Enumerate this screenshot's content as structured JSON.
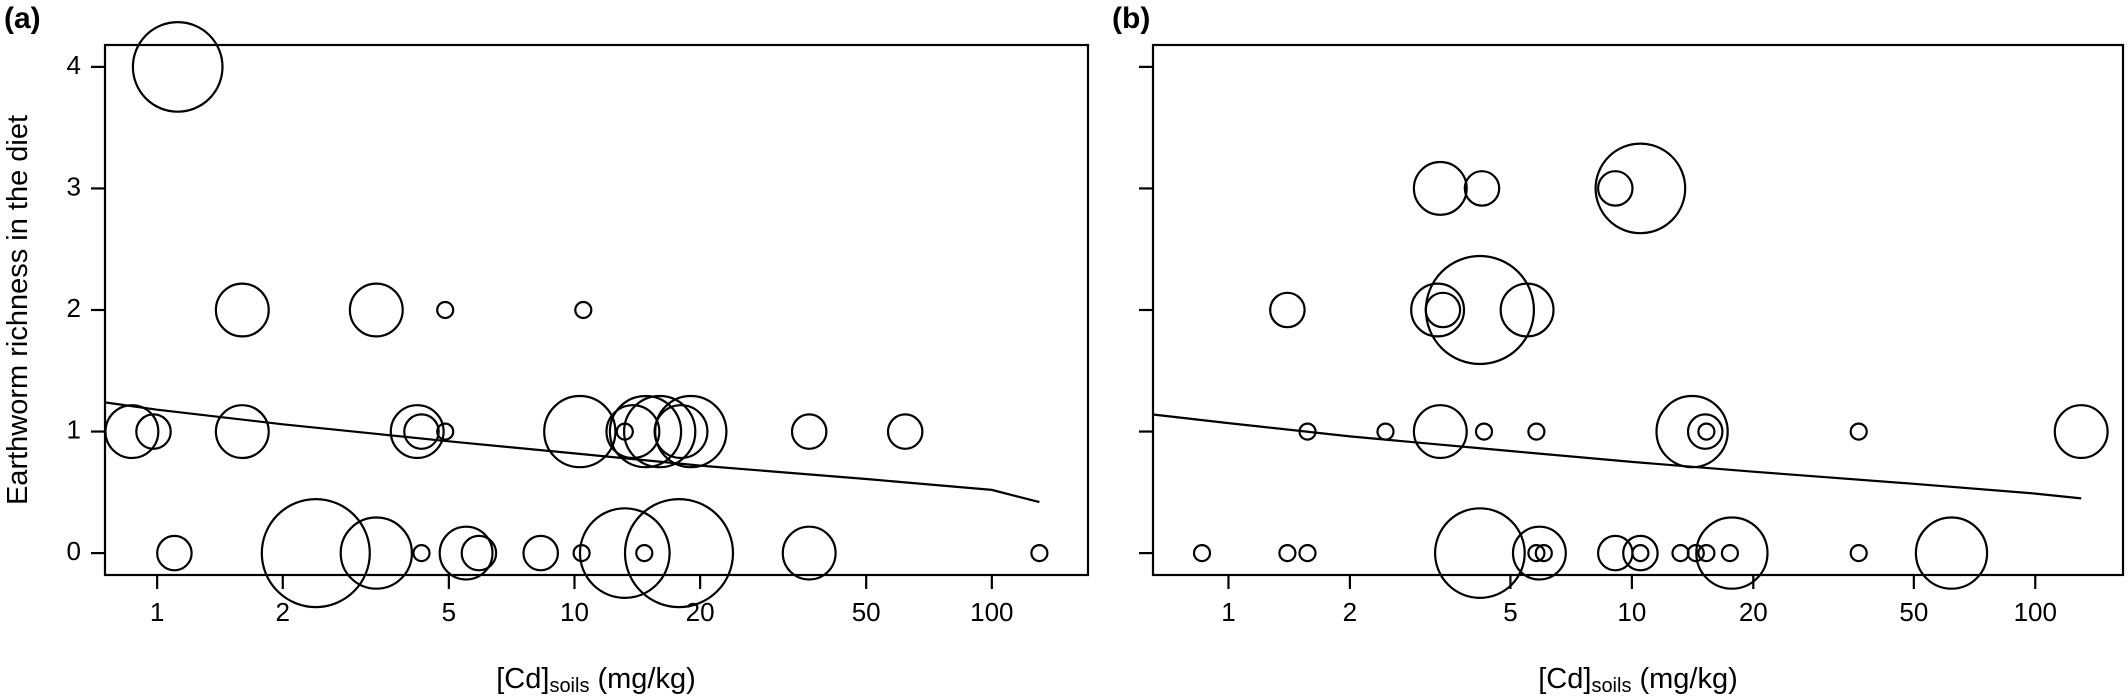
{
  "chart_data": [
    {
      "type": "scatter",
      "panel_label": "(a)",
      "xlabel_main": "[Cd]",
      "xlabel_sub": "soils",
      "xlabel_unit": "(mg/kg)",
      "ylabel": "Earthworm richness in the diet",
      "x_scale": "log",
      "xlim": [
        0.75,
        170
      ],
      "ylim": [
        -0.18,
        4.18
      ],
      "x_ticks": [
        1,
        2,
        5,
        10,
        20,
        50,
        100
      ],
      "x_tick_labels": [
        "1",
        "2",
        "5",
        "10",
        "20",
        "50",
        "100"
      ],
      "y_ticks": [
        0,
        1,
        2,
        3,
        4
      ],
      "y_tick_labels": [
        "0",
        "1",
        "2",
        "3",
        "4"
      ],
      "points": [
        {
          "x": 1.12,
          "y": 4,
          "size": 5
        },
        {
          "x": 1.6,
          "y": 2,
          "size": 3
        },
        {
          "x": 3.35,
          "y": 2,
          "size": 3
        },
        {
          "x": 4.9,
          "y": 2,
          "size": 1
        },
        {
          "x": 10.5,
          "y": 2,
          "size": 1
        },
        {
          "x": 0.87,
          "y": 1,
          "size": 3
        },
        {
          "x": 0.98,
          "y": 1,
          "size": 2
        },
        {
          "x": 1.6,
          "y": 1,
          "size": 3
        },
        {
          "x": 4.2,
          "y": 1,
          "size": 3
        },
        {
          "x": 4.3,
          "y": 1,
          "size": 2
        },
        {
          "x": 4.9,
          "y": 1,
          "size": 1
        },
        {
          "x": 10.3,
          "y": 1,
          "size": 4
        },
        {
          "x": 13.2,
          "y": 1,
          "size": 1
        },
        {
          "x": 13.8,
          "y": 1,
          "size": 3
        },
        {
          "x": 14.8,
          "y": 1,
          "size": 4
        },
        {
          "x": 16.0,
          "y": 1,
          "size": 4
        },
        {
          "x": 18.0,
          "y": 1,
          "size": 3
        },
        {
          "x": 19.0,
          "y": 1,
          "size": 4
        },
        {
          "x": 36.5,
          "y": 1,
          "size": 2
        },
        {
          "x": 62.0,
          "y": 1,
          "size": 2
        },
        {
          "x": 1.1,
          "y": 0,
          "size": 2
        },
        {
          "x": 2.4,
          "y": 0,
          "size": 6
        },
        {
          "x": 3.35,
          "y": 0,
          "size": 4
        },
        {
          "x": 4.3,
          "y": 0,
          "size": 1
        },
        {
          "x": 5.5,
          "y": 0,
          "size": 3
        },
        {
          "x": 5.9,
          "y": 0,
          "size": 2
        },
        {
          "x": 8.3,
          "y": 0,
          "size": 2
        },
        {
          "x": 10.4,
          "y": 0,
          "size": 1
        },
        {
          "x": 13.2,
          "y": 0,
          "size": 5
        },
        {
          "x": 14.7,
          "y": 0,
          "size": 1
        },
        {
          "x": 17.8,
          "y": 0,
          "size": 6
        },
        {
          "x": 36.5,
          "y": 0,
          "size": 3
        },
        {
          "x": 130.0,
          "y": 0,
          "size": 1
        }
      ],
      "fit_line": {
        "x": [
          0.75,
          1,
          2,
          5,
          10,
          20,
          50,
          100,
          130
        ],
        "y": [
          1.24,
          1.18,
          1.06,
          0.92,
          0.82,
          0.72,
          0.61,
          0.52,
          0.42
        ]
      }
    },
    {
      "type": "scatter",
      "panel_label": "(b)",
      "xlabel_main": "[Cd]",
      "xlabel_sub": "soils",
      "xlabel_unit": "(mg/kg)",
      "x_scale": "log",
      "xlim": [
        0.65,
        165
      ],
      "ylim": [
        -0.18,
        4.18
      ],
      "x_ticks": [
        1,
        2,
        5,
        10,
        20,
        50,
        100
      ],
      "x_tick_labels": [
        "1",
        "2",
        "5",
        "10",
        "20",
        "50",
        "100"
      ],
      "y_ticks": [
        0,
        1,
        2,
        3,
        4
      ],
      "points": [
        {
          "x": 3.35,
          "y": 3,
          "size": 3
        },
        {
          "x": 4.25,
          "y": 3,
          "size": 2
        },
        {
          "x": 9.1,
          "y": 3,
          "size": 2
        },
        {
          "x": 10.5,
          "y": 3,
          "size": 5
        },
        {
          "x": 1.4,
          "y": 2,
          "size": 2
        },
        {
          "x": 3.3,
          "y": 2,
          "size": 3
        },
        {
          "x": 3.4,
          "y": 2,
          "size": 2
        },
        {
          "x": 4.2,
          "y": 2,
          "size": 6
        },
        {
          "x": 5.5,
          "y": 2,
          "size": 3
        },
        {
          "x": 1.57,
          "y": 1,
          "size": 1
        },
        {
          "x": 2.45,
          "y": 1,
          "size": 1
        },
        {
          "x": 3.35,
          "y": 1,
          "size": 3
        },
        {
          "x": 4.3,
          "y": 1,
          "size": 1
        },
        {
          "x": 5.8,
          "y": 1,
          "size": 1
        },
        {
          "x": 14.1,
          "y": 1,
          "size": 4
        },
        {
          "x": 15.2,
          "y": 1,
          "size": 2
        },
        {
          "x": 15.3,
          "y": 1,
          "size": 1
        },
        {
          "x": 36.5,
          "y": 1,
          "size": 1
        },
        {
          "x": 130.0,
          "y": 1,
          "size": 3
        },
        {
          "x": 0.86,
          "y": 0,
          "size": 1
        },
        {
          "x": 1.4,
          "y": 0,
          "size": 1
        },
        {
          "x": 1.57,
          "y": 0,
          "size": 1
        },
        {
          "x": 4.2,
          "y": 0,
          "size": 5
        },
        {
          "x": 5.9,
          "y": 0,
          "size": 3
        },
        {
          "x": 5.8,
          "y": 0,
          "size": 1
        },
        {
          "x": 6.05,
          "y": 0,
          "size": 1
        },
        {
          "x": 9.1,
          "y": 0,
          "size": 2
        },
        {
          "x": 10.5,
          "y": 0,
          "size": 2
        },
        {
          "x": 10.5,
          "y": 0,
          "size": 1
        },
        {
          "x": 13.2,
          "y": 0,
          "size": 1
        },
        {
          "x": 14.4,
          "y": 0,
          "size": 1
        },
        {
          "x": 15.3,
          "y": 0,
          "size": 1
        },
        {
          "x": 17.7,
          "y": 0,
          "size": 4
        },
        {
          "x": 17.5,
          "y": 0,
          "size": 1
        },
        {
          "x": 36.5,
          "y": 0,
          "size": 1
        },
        {
          "x": 62.0,
          "y": 0,
          "size": 4
        }
      ],
      "fit_line": {
        "x": [
          0.65,
          1,
          2,
          5,
          10,
          20,
          50,
          100,
          130
        ],
        "y": [
          1.14,
          1.07,
          0.96,
          0.84,
          0.75,
          0.67,
          0.57,
          0.49,
          0.45
        ]
      }
    }
  ]
}
